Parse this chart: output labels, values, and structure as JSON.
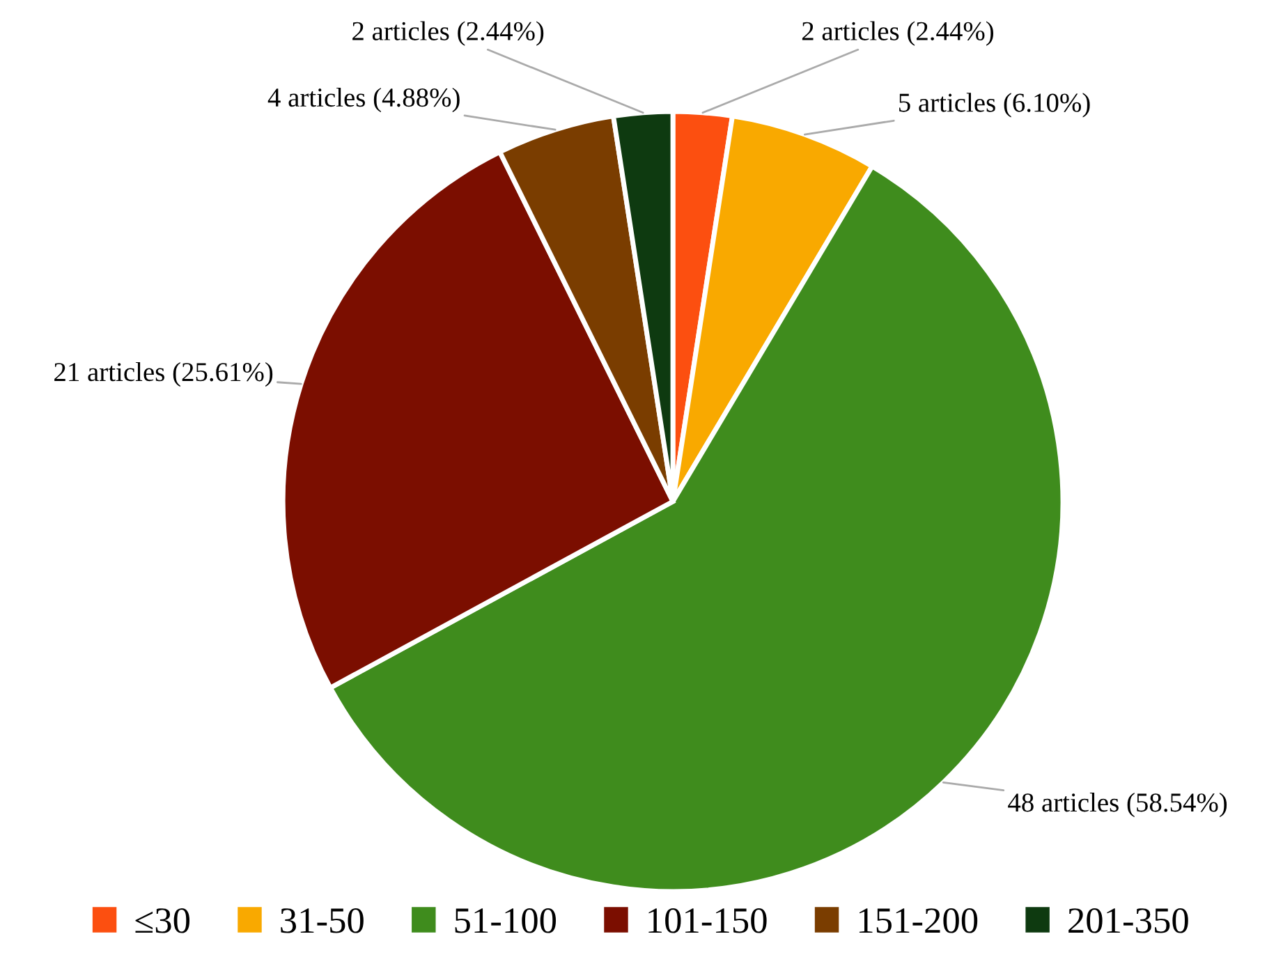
{
  "chart_data": {
    "type": "pie",
    "categories": [
      "≤30",
      "31-50",
      "51-100",
      "101-150",
      "151-200",
      "201-350"
    ],
    "values": [
      2,
      5,
      48,
      21,
      4,
      2
    ],
    "colors": [
      "#fc4f10",
      "#f9a900",
      "#3f8c1d",
      "#7b0e00",
      "#7a3d00",
      "#0e3a10"
    ],
    "value_labels": [
      "2 articles (2.44%)",
      "5 articles (6.10%)",
      "48 articles (58.54%)",
      "21 articles (25.61%)",
      "4 articles (4.88%)",
      "2 articles (2.44%)"
    ],
    "legend": "bottom"
  }
}
